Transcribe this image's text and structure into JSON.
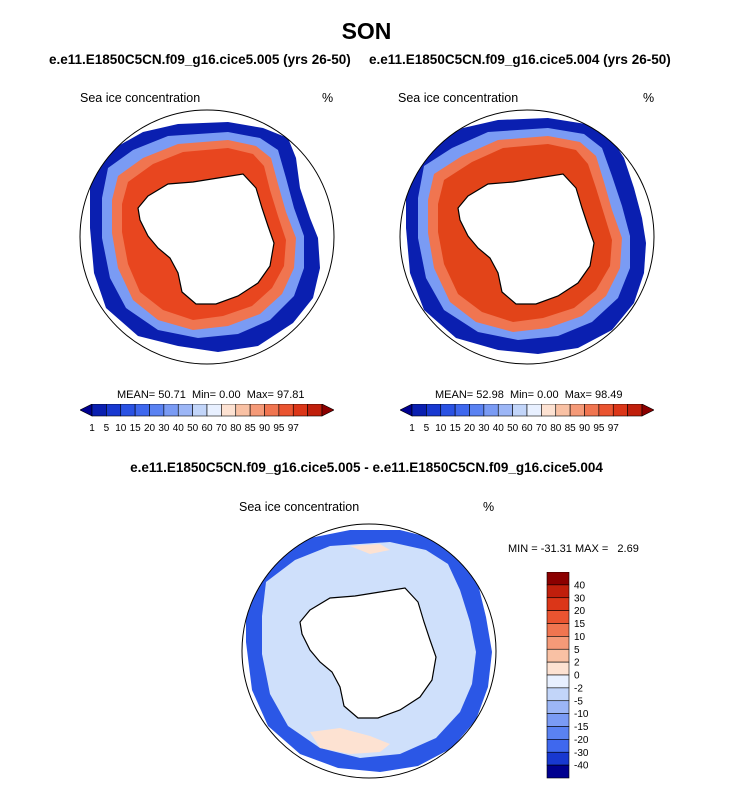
{
  "figure": {
    "title": "SON",
    "case_a_title": "e.e11.E1850C5CN.f09_g16.cice5.005 (yrs 26-50)",
    "case_b_title": "e.e11.E1850C5CN.f09_g16.cice5.004 (yrs 26-50)",
    "diff_title": "e.e11.E1850C5CN.f09_g16.cice5.005 - e.e11.E1850C5CN.f09_g16.cice5.004"
  },
  "panels": {
    "left": {
      "label": "Sea ice concentration",
      "units": "%",
      "mean_label": "MEAN=",
      "mean": "50.71",
      "min_label": "Min=",
      "min": "0.00",
      "max_label": "Max=",
      "max": "97.81"
    },
    "right": {
      "label": "Sea ice concentration",
      "units": "%",
      "mean_label": "MEAN=",
      "mean": "52.98",
      "min_label": "Min=",
      "min": "0.00",
      "max_label": "Max=",
      "max": "98.49"
    },
    "diff": {
      "label": "Sea ice concentration",
      "units": "%",
      "minmax": "MIN = -31.31 MAX =   2.69"
    }
  },
  "chart_data": [
    {
      "type": "heatmap",
      "title": "e.e11.E1850C5CN.f09_g16.cice5.005 (yrs 26-50)",
      "variable": "Sea ice concentration",
      "units": "%",
      "projection": "south polar stereographic",
      "season": "SON",
      "stats": {
        "mean": 50.71,
        "min": 0.0,
        "max": 97.81
      },
      "contour_levels": [
        1,
        5,
        10,
        15,
        20,
        30,
        40,
        50,
        60,
        70,
        80,
        85,
        90,
        95,
        97
      ]
    },
    {
      "type": "heatmap",
      "title": "e.e11.E1850C5CN.f09_g16.cice5.004 (yrs 26-50)",
      "variable": "Sea ice concentration",
      "units": "%",
      "projection": "south polar stereographic",
      "season": "SON",
      "stats": {
        "mean": 52.98,
        "min": 0.0,
        "max": 98.49
      },
      "contour_levels": [
        1,
        5,
        10,
        15,
        20,
        30,
        40,
        50,
        60,
        70,
        80,
        85,
        90,
        95,
        97
      ]
    },
    {
      "type": "heatmap",
      "title": "e.e11.E1850C5CN.f09_g16.cice5.005 - e.e11.E1850C5CN.f09_g16.cice5.004",
      "variable": "Sea ice concentration",
      "units": "%",
      "projection": "south polar stereographic",
      "stats": {
        "min": -31.31,
        "max": 2.69
      },
      "contour_levels": [
        -40,
        -30,
        -20,
        -15,
        -10,
        -5,
        -2,
        0,
        2,
        5,
        10,
        15,
        20,
        30,
        40
      ]
    }
  ],
  "colorbars": {
    "main": {
      "labels": [
        "1",
        "5",
        "10",
        "15",
        "20",
        "30",
        "40",
        "50",
        "60",
        "70",
        "80",
        "85",
        "90",
        "95",
        "97"
      ],
      "colors": [
        "#00008f",
        "#0a1fb0",
        "#1838d0",
        "#2a52e3",
        "#3f68ee",
        "#5a82f2",
        "#7a9bf4",
        "#9cb6f6",
        "#c2d5f9",
        "#e8f0ff",
        "#fde2d2",
        "#f9c1a4",
        "#f59a78",
        "#f07550",
        "#ea5430",
        "#db3618",
        "#c01f0c",
        "#8b0000"
      ]
    },
    "diff": {
      "labels": [
        "40",
        "30",
        "20",
        "15",
        "10",
        "5",
        "2",
        "0",
        "-2",
        "-5",
        "-10",
        "-15",
        "-20",
        "-30",
        "-40"
      ],
      "colors": [
        "#8b0000",
        "#c01f0c",
        "#db3618",
        "#ea5430",
        "#f07550",
        "#f59a78",
        "#f9c1a4",
        "#fde2d2",
        "#e8f0ff",
        "#c2d5f9",
        "#9cb6f6",
        "#7a9bf4",
        "#5a82f2",
        "#3f68ee",
        "#1838d0",
        "#00008f"
      ]
    }
  },
  "colors": {
    "ice_high": "#e8461f",
    "ice_edge": "#0a1fb0",
    "diff_base": "#cfe0fb",
    "diff_band": "#2b57e6"
  }
}
